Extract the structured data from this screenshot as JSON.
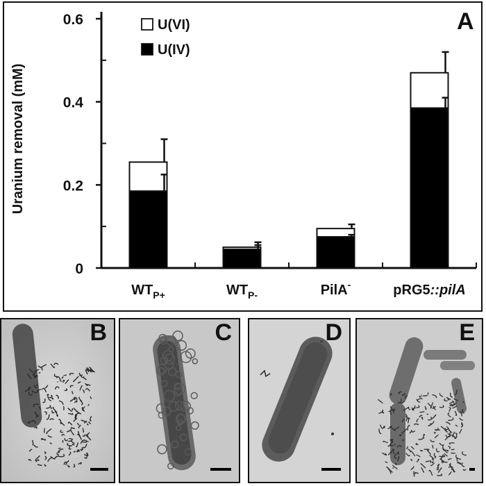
{
  "panel_letters": {
    "a": "A",
    "b": "B",
    "c": "C",
    "d": "D",
    "e": "E"
  },
  "chart_data": {
    "type": "bar",
    "stacked": true,
    "ylabel": "Uranium removal (mM)",
    "ylim": [
      0,
      0.6
    ],
    "yticks": [
      "0",
      "0.2",
      "0.4",
      "0.6"
    ],
    "ytick_values": [
      0,
      0.2,
      0.4,
      0.6
    ],
    "categories": [
      {
        "base": "WT",
        "sub": "P+",
        "sup": "",
        "italic": ""
      },
      {
        "base": "WT",
        "sub": "P-",
        "sup": "",
        "italic": ""
      },
      {
        "base": "PilA",
        "sub": "",
        "sup": "-",
        "italic": ""
      },
      {
        "base": "pRG5",
        "sub": "",
        "sup": "",
        "italic": "::pilA"
      }
    ],
    "series": [
      {
        "name": "U(IV)",
        "color": "#000000",
        "values": [
          0.185,
          0.045,
          0.075,
          0.385
        ],
        "errors": [
          0.04,
          0.01,
          0.005,
          0.025
        ]
      },
      {
        "name": "U(VI)",
        "color": "#ffffff",
        "values": [
          0.07,
          0.005,
          0.02,
          0.085
        ],
        "errors": [
          0.055,
          0.012,
          0.01,
          0.05
        ]
      }
    ],
    "legend_order": [
      "U(VI)",
      "U(IV)"
    ],
    "legend_position": "top-left"
  }
}
